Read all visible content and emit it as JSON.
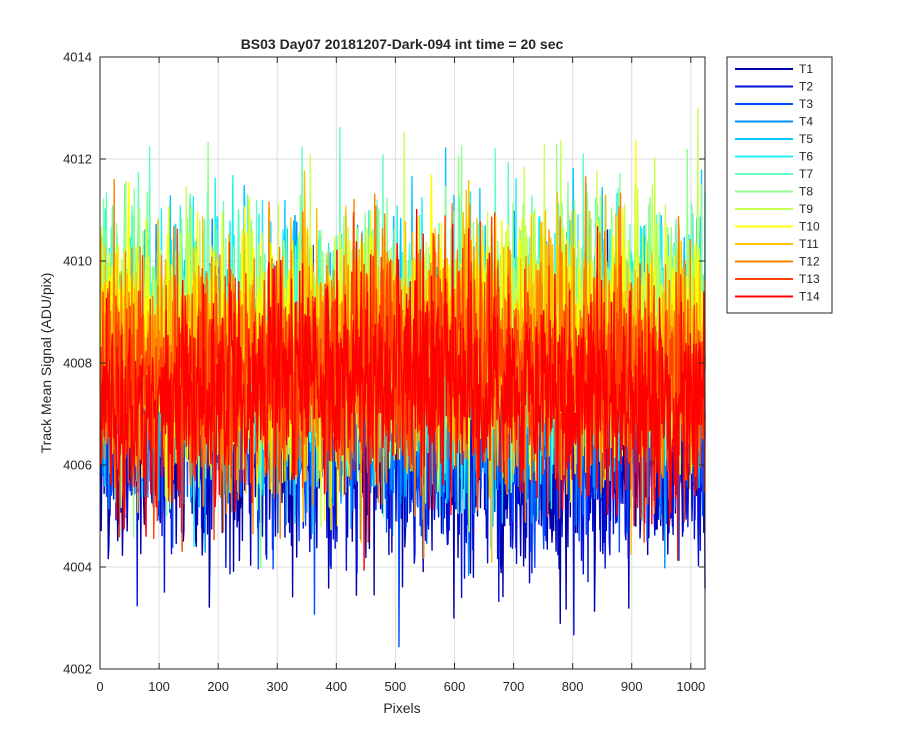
{
  "chart_data": {
    "type": "line",
    "title": "BS03 Day07 20181207-Dark-094 int time = 20 sec",
    "xlabel": "Pixels",
    "ylabel": "Track Mean Signal (ADU/pix)",
    "xlim": [
      0,
      1024
    ],
    "ylim": [
      4002,
      4014
    ],
    "xticks": [
      0,
      100,
      200,
      300,
      400,
      500,
      600,
      700,
      800,
      900,
      1000
    ],
    "yticks": [
      4002,
      4004,
      4006,
      4008,
      4010,
      4012,
      4014
    ],
    "grid": true,
    "legend_position": "outside-top-right",
    "n_points": 1024,
    "series": [
      {
        "name": "T1",
        "color": "#0000aa",
        "mean": 4006.3,
        "spread": 1.15
      },
      {
        "name": "T2",
        "color": "#0010dd",
        "mean": 4006.6,
        "spread": 1.1
      },
      {
        "name": "T3",
        "color": "#0050ff",
        "mean": 4007.0,
        "spread": 1.1
      },
      {
        "name": "T4",
        "color": "#0090ff",
        "mean": 4007.6,
        "spread": 1.15
      },
      {
        "name": "T5",
        "color": "#00c8ff",
        "mean": 4008.1,
        "spread": 1.2
      },
      {
        "name": "T6",
        "color": "#20f0f0",
        "mean": 4008.4,
        "spread": 1.2
      },
      {
        "name": "T7",
        "color": "#60ffc0",
        "mean": 4008.6,
        "spread": 1.2
      },
      {
        "name": "T8",
        "color": "#90ff90",
        "mean": 4008.6,
        "spread": 1.2
      },
      {
        "name": "T9",
        "color": "#c8ff50",
        "mean": 4008.5,
        "spread": 1.2
      },
      {
        "name": "T10",
        "color": "#ffff00",
        "mean": 4008.4,
        "spread": 1.2
      },
      {
        "name": "T11",
        "color": "#ffc000",
        "mean": 4008.2,
        "spread": 1.2
      },
      {
        "name": "T12",
        "color": "#ff8000",
        "mean": 4008.0,
        "spread": 1.15
      },
      {
        "name": "T13",
        "color": "#ff4000",
        "mean": 4007.8,
        "spread": 1.1
      },
      {
        "name": "T14",
        "color": "#ff0000",
        "mean": 4007.4,
        "spread": 1.05
      }
    ]
  }
}
